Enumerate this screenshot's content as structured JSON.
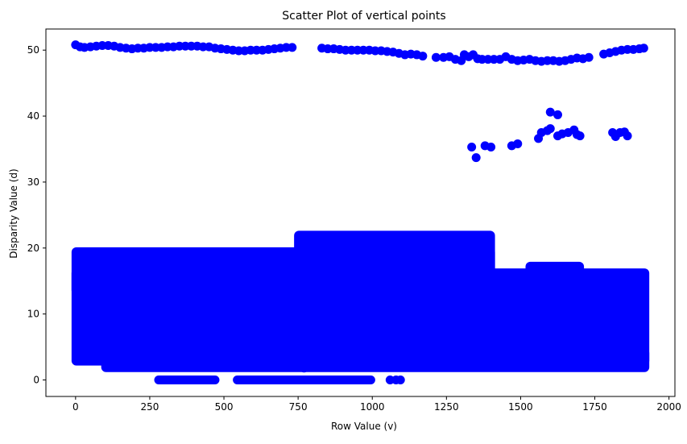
{
  "chart_data": {
    "type": "scatter",
    "title": "Scatter Plot of vertical points",
    "xlabel": "Row Value (v)",
    "ylabel": "Disparity Value (d)",
    "xlim": [
      -100,
      2020
    ],
    "ylim": [
      -2.5,
      53.2
    ],
    "xticks": [
      0,
      250,
      500,
      750,
      1000,
      1250,
      1500,
      1750,
      2000
    ],
    "xtick_labels": [
      "0",
      "250",
      "500",
      "750",
      "1000",
      "1250",
      "1500",
      "1750",
      "2000"
    ],
    "yticks": [
      0,
      10,
      20,
      30,
      40,
      50
    ],
    "ytick_labels": [
      "0",
      "10",
      "20",
      "30",
      "40",
      "50"
    ],
    "grid": false,
    "legend": "none",
    "marker_color": "#0000ff",
    "series": [
      {
        "points": [
          [
            0,
            50.8
          ],
          [
            15,
            50.5
          ],
          [
            30,
            50.4
          ],
          [
            50,
            50.5
          ],
          [
            70,
            50.6
          ],
          [
            90,
            50.7
          ],
          [
            110,
            50.7
          ],
          [
            130,
            50.6
          ],
          [
            150,
            50.4
          ],
          [
            170,
            50.3
          ],
          [
            190,
            50.2
          ],
          [
            210,
            50.3
          ],
          [
            230,
            50.3
          ],
          [
            250,
            50.4
          ],
          [
            270,
            50.4
          ],
          [
            290,
            50.4
          ],
          [
            310,
            50.5
          ],
          [
            330,
            50.5
          ],
          [
            350,
            50.6
          ],
          [
            370,
            50.6
          ],
          [
            390,
            50.6
          ],
          [
            410,
            50.6
          ],
          [
            430,
            50.5
          ],
          [
            450,
            50.5
          ],
          [
            470,
            50.3
          ],
          [
            490,
            50.2
          ],
          [
            510,
            50.1
          ],
          [
            530,
            50.0
          ],
          [
            550,
            49.9
          ],
          [
            570,
            49.9
          ],
          [
            590,
            50.0
          ],
          [
            610,
            50.0
          ],
          [
            630,
            50.0
          ],
          [
            650,
            50.1
          ],
          [
            670,
            50.2
          ],
          [
            690,
            50.3
          ],
          [
            710,
            50.4
          ],
          [
            730,
            50.4
          ],
          [
            830,
            50.3
          ],
          [
            850,
            50.2
          ],
          [
            870,
            50.2
          ],
          [
            890,
            50.1
          ],
          [
            910,
            50.0
          ],
          [
            930,
            50.0
          ],
          [
            950,
            50.0
          ],
          [
            970,
            50.0
          ],
          [
            990,
            50.0
          ],
          [
            1010,
            49.9
          ],
          [
            1030,
            49.9
          ],
          [
            1050,
            49.8
          ],
          [
            1070,
            49.7
          ],
          [
            1090,
            49.5
          ],
          [
            1110,
            49.3
          ],
          [
            1130,
            49.4
          ],
          [
            1150,
            49.3
          ],
          [
            1170,
            49.1
          ],
          [
            1215,
            48.9
          ],
          [
            1240,
            48.9
          ],
          [
            1260,
            49.0
          ],
          [
            1280,
            48.6
          ],
          [
            1300,
            48.4
          ],
          [
            1310,
            49.3
          ],
          [
            1325,
            49.0
          ],
          [
            1340,
            49.3
          ],
          [
            1355,
            48.7
          ],
          [
            1370,
            48.6
          ],
          [
            1390,
            48.6
          ],
          [
            1410,
            48.6
          ],
          [
            1430,
            48.6
          ],
          [
            1450,
            49.0
          ],
          [
            1470,
            48.6
          ],
          [
            1490,
            48.4
          ],
          [
            1510,
            48.5
          ],
          [
            1530,
            48.6
          ],
          [
            1550,
            48.4
          ],
          [
            1570,
            48.3
          ],
          [
            1590,
            48.4
          ],
          [
            1610,
            48.4
          ],
          [
            1630,
            48.3
          ],
          [
            1650,
            48.4
          ],
          [
            1670,
            48.6
          ],
          [
            1690,
            48.8
          ],
          [
            1710,
            48.7
          ],
          [
            1730,
            48.9
          ],
          [
            1780,
            49.4
          ],
          [
            1800,
            49.6
          ],
          [
            1820,
            49.8
          ],
          [
            1840,
            50.0
          ],
          [
            1860,
            50.1
          ],
          [
            1880,
            50.1
          ],
          [
            1900,
            50.2
          ],
          [
            1915,
            50.3
          ],
          [
            1335,
            35.3
          ],
          [
            1350,
            33.7
          ],
          [
            1380,
            35.5
          ],
          [
            1400,
            35.3
          ],
          [
            1470,
            35.5
          ],
          [
            1490,
            35.8
          ],
          [
            1560,
            36.6
          ],
          [
            1570,
            37.5
          ],
          [
            1590,
            37.8
          ],
          [
            1600,
            40.6
          ],
          [
            1600,
            38.1
          ],
          [
            1625,
            40.2
          ],
          [
            1625,
            37.0
          ],
          [
            1640,
            37.3
          ],
          [
            1660,
            37.5
          ],
          [
            1680,
            37.9
          ],
          [
            1690,
            37.2
          ],
          [
            1700,
            37.0
          ],
          [
            1810,
            37.5
          ],
          [
            1820,
            36.9
          ],
          [
            1835,
            37.5
          ],
          [
            1850,
            37.6
          ],
          [
            1860,
            37.0
          ],
          [
            770,
            1.8
          ],
          [
            1060,
            0
          ],
          [
            1080,
            0
          ],
          [
            1095,
            0
          ]
        ]
      }
    ],
    "bands": [
      {
        "x": [
          0,
          1920
        ],
        "y": [
          2.8,
          16.3
        ]
      },
      {
        "x": [
          0,
          1400
        ],
        "y": [
          13.5,
          19.5
        ]
      },
      {
        "x": [
          750,
          1400
        ],
        "y": [
          16,
          22
        ]
      },
      {
        "x": [
          100,
          1920
        ],
        "y": [
          1.8,
          4.2
        ]
      },
      {
        "x": [
          1530,
          1700
        ],
        "y": [
          15,
          17.3
        ]
      }
    ],
    "segments": [
      {
        "x": [
          280,
          470
        ],
        "y": 0
      },
      {
        "x": [
          545,
          995
        ],
        "y": 0
      }
    ]
  }
}
